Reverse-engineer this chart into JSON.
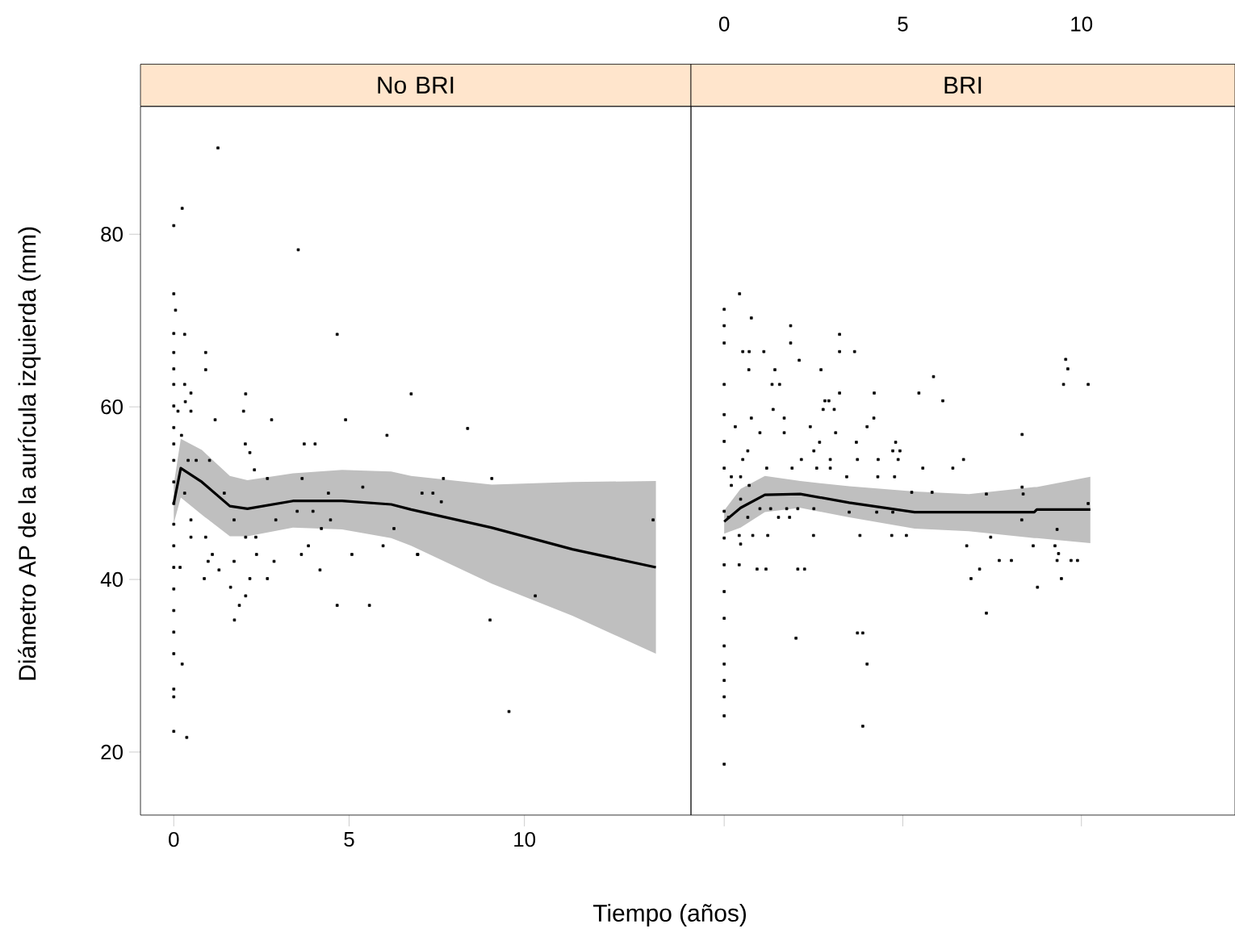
{
  "chart_data": [
    {
      "type": "scatter",
      "title": "No BRI",
      "xlabel": "Tiempo (años)",
      "ylabel": "Diámetro AP de la aurícula izquierda (mm)",
      "xlim": [
        -0.95,
        14.75
      ],
      "ylim": [
        12.7,
        94.8
      ],
      "xticks": [
        0,
        5,
        10
      ],
      "yticks": [
        20,
        40,
        60,
        80
      ],
      "series": [
        {
          "type": "scatter",
          "color": "#000000",
          "marker": "square",
          "x": [
            0,
            0,
            0,
            0,
            0,
            0,
            0,
            0,
            0,
            0,
            0,
            0,
            0,
            0,
            0,
            0,
            0,
            0,
            0,
            0,
            0,
            0,
            1.26,
            0.24,
            0.05,
            0.31,
            0.91,
            0.91,
            3.55,
            4.66,
            6.77,
            2.05,
            1.99,
            1.18,
            2.79,
            4.9,
            3.72,
            4.03,
            6.08,
            2.04,
            2.17,
            2.3,
            2.67,
            3.66,
            5.39,
            4.41,
            1.44,
            3.52,
            3.97,
            6.28,
            4.21,
            4.47,
            2.91,
            1.72,
            0.49,
            0.91,
            2.05,
            2.34,
            3.84,
            5.97,
            3.64,
            5.08,
            6.95,
            2.36,
            1.1,
            2.86,
            0.98,
            0.18,
            1.29,
            1.72,
            4.17,
            0.87,
            2.17,
            2.67,
            1.62,
            2.05,
            1.87,
            1.73,
            4.66,
            5.58,
            0.24,
            0.37,
            0.49,
            0.31,
            1.02,
            0.64,
            0.41,
            0.22,
            0.33,
            0.49,
            0.31,
            0.49,
            0.12,
            8.38,
            7.69,
            9.07,
            7.08,
            7.39,
            7.63,
            13.67,
            6.96,
            10.31,
            9.02,
            9.56
          ],
          "values": [
            81.0,
            73.1,
            68.5,
            66.3,
            64.4,
            62.6,
            60.1,
            57.6,
            55.7,
            53.8,
            51.3,
            48.8,
            46.4,
            43.9,
            41.4,
            38.9,
            36.4,
            33.9,
            31.4,
            27.3,
            26.4,
            22.4,
            90.0,
            83.0,
            71.2,
            68.4,
            66.3,
            64.3,
            78.2,
            68.4,
            61.5,
            61.5,
            59.5,
            58.5,
            58.5,
            58.5,
            55.7,
            55.7,
            56.7,
            55.7,
            54.7,
            52.7,
            51.7,
            51.7,
            50.7,
            50.0,
            50.0,
            47.9,
            47.9,
            45.9,
            45.9,
            46.9,
            46.9,
            46.9,
            44.9,
            44.9,
            44.9,
            44.9,
            43.9,
            43.9,
            42.9,
            42.9,
            42.9,
            42.9,
            42.9,
            42.1,
            42.1,
            41.4,
            41.1,
            42.1,
            41.1,
            40.1,
            40.1,
            40.1,
            39.1,
            38.1,
            37.0,
            35.3,
            37.0,
            37.0,
            30.2,
            21.7,
            46.9,
            50.0,
            53.8,
            53.8,
            53.8,
            56.7,
            60.6,
            61.6,
            62.6,
            59.5,
            59.5,
            57.5,
            51.7,
            51.7,
            50.0,
            50.0,
            49.0,
            46.9,
            42.9,
            38.1,
            35.3,
            24.7
          ]
        },
        {
          "type": "line",
          "color": "#000000",
          "marker": "none",
          "x": [
            0,
            0.2,
            0.8,
            1.6,
            2.1,
            3.4,
            4.8,
            6.2,
            6.77,
            9.07,
            11.37,
            13.75
          ],
          "values": [
            48.8,
            52.9,
            51.3,
            48.5,
            48.2,
            49.1,
            49.1,
            48.7,
            48.1,
            46.0,
            43.5,
            41.4
          ],
          "lower": [
            46.5,
            49.5,
            47.5,
            45.0,
            45.0,
            46.0,
            45.8,
            44.8,
            43.9,
            39.5,
            35.8,
            31.4
          ],
          "upper": [
            51.0,
            56.3,
            55.0,
            52.0,
            51.5,
            52.3,
            52.7,
            52.5,
            52.0,
            51.0,
            51.3,
            51.4
          ]
        }
      ]
    },
    {
      "type": "scatter",
      "title": "BRI",
      "xlim": [
        -0.93,
        14.3
      ],
      "ylim": [
        12.7,
        94.8
      ],
      "xticks": [
        0,
        5,
        10
      ],
      "yticks": [
        20,
        40,
        60,
        80
      ],
      "tick_labels": "x",
      "series": [
        {
          "type": "scatter",
          "color": "#000000",
          "marker": "square",
          "x": [
            0,
            0,
            0,
            0,
            0,
            0,
            0,
            0,
            0,
            0,
            0,
            0,
            0,
            0,
            0,
            0,
            0,
            0,
            0.43,
            0.76,
            1.86,
            1.86,
            3.23,
            0.52,
            0.7,
            1.11,
            3.23,
            3.65,
            2.1,
            0.69,
            1.42,
            2.71,
            1.34,
            1.55,
            5.86,
            3.23,
            4.2,
            5.45,
            6.12,
            2.82,
            2.93,
            1.37,
            2.77,
            3.08,
            0.31,
            1.68,
            4.19,
            4.0,
            0.76,
            1.0,
            1.68,
            2.41,
            3.12,
            2.67,
            3.7,
            4.8,
            4.92,
            0.66,
            2.51,
            4.72,
            0.52,
            2.16,
            2.97,
            3.73,
            4.31,
            4.87,
            5.56,
            6.4,
            6.7,
            0.2,
            0.46,
            2.59,
            3.43,
            4.3,
            4.77,
            0.2,
            0.7,
            1.19,
            1.9,
            2.97,
            5.25,
            5.82,
            0.46,
            1.0,
            1.3,
            1.75,
            2.06,
            2.51,
            0.12,
            0.66,
            1.52,
            1.83,
            3.5,
            4.27,
            4.72,
            0.42,
            0.8,
            1.22,
            2.5,
            3.8,
            4.69,
            5.1,
            0.46,
            0.42,
            0.92,
            1.17,
            2.06,
            2.25,
            2.01,
            3.73,
            3.88,
            4.0,
            3.88,
            9.56,
            9.62,
            9.5,
            10.19,
            8.34,
            7.34,
            8.34,
            8.37,
            10.19,
            8.33,
            7.46,
            9.32,
            6.79,
            8.65,
            9.26,
            9.36,
            7.7,
            8.04,
            9.32,
            9.71,
            9.89,
            7.15,
            6.91,
            9.44,
            8.77,
            7.34
          ],
          "values": [
            71.3,
            69.4,
            67.4,
            62.6,
            59.1,
            56.0,
            52.9,
            47.9,
            44.8,
            41.7,
            38.6,
            35.5,
            32.3,
            30.2,
            28.3,
            26.4,
            24.2,
            18.6,
            73.1,
            70.3,
            69.4,
            67.4,
            68.4,
            66.4,
            66.4,
            66.4,
            66.4,
            66.4,
            65.4,
            64.3,
            64.3,
            64.3,
            62.6,
            62.6,
            63.5,
            61.6,
            61.6,
            61.6,
            60.7,
            60.7,
            60.7,
            59.7,
            59.7,
            59.7,
            57.7,
            58.7,
            58.7,
            57.7,
            58.7,
            57.0,
            57.0,
            57.7,
            57.0,
            55.9,
            55.9,
            55.9,
            54.9,
            54.9,
            54.9,
            54.9,
            53.9,
            53.9,
            53.9,
            53.9,
            53.9,
            53.9,
            52.9,
            52.9,
            53.9,
            51.9,
            51.9,
            52.9,
            51.9,
            51.9,
            51.9,
            50.9,
            50.9,
            52.9,
            52.9,
            52.9,
            50.1,
            50.1,
            49.3,
            48.2,
            48.2,
            48.2,
            48.2,
            48.2,
            47.2,
            47.2,
            47.2,
            47.2,
            47.8,
            47.8,
            47.8,
            45.1,
            45.1,
            45.1,
            45.1,
            45.1,
            45.1,
            45.1,
            44.1,
            41.7,
            41.2,
            41.2,
            41.2,
            41.2,
            33.2,
            33.8,
            33.8,
            30.2,
            23.0,
            65.5,
            64.4,
            62.6,
            62.6,
            56.8,
            49.9,
            50.7,
            49.9,
            48.8,
            46.9,
            44.9,
            45.8,
            43.9,
            43.9,
            43.9,
            43.0,
            42.2,
            42.2,
            42.2,
            42.2,
            42.2,
            41.2,
            40.1,
            40.1,
            39.1,
            36.1
          ]
        },
        {
          "type": "line",
          "color": "#000000",
          "marker": "none",
          "x": [
            0,
            0.46,
            1.14,
            2.13,
            3.5,
            5.33,
            6.85,
            8.68,
            8.75,
            10.25
          ],
          "values": [
            46.7,
            48.3,
            49.8,
            49.9,
            48.9,
            47.8,
            47.8,
            47.8,
            48.1,
            48.1
          ],
          "lower": [
            45.3,
            46.0,
            47.8,
            48.3,
            47.2,
            45.9,
            45.6,
            44.8,
            44.8,
            44.2
          ],
          "upper": [
            48.0,
            50.5,
            52.0,
            51.4,
            50.8,
            50.2,
            49.9,
            50.7,
            50.7,
            51.9
          ]
        }
      ]
    }
  ]
}
